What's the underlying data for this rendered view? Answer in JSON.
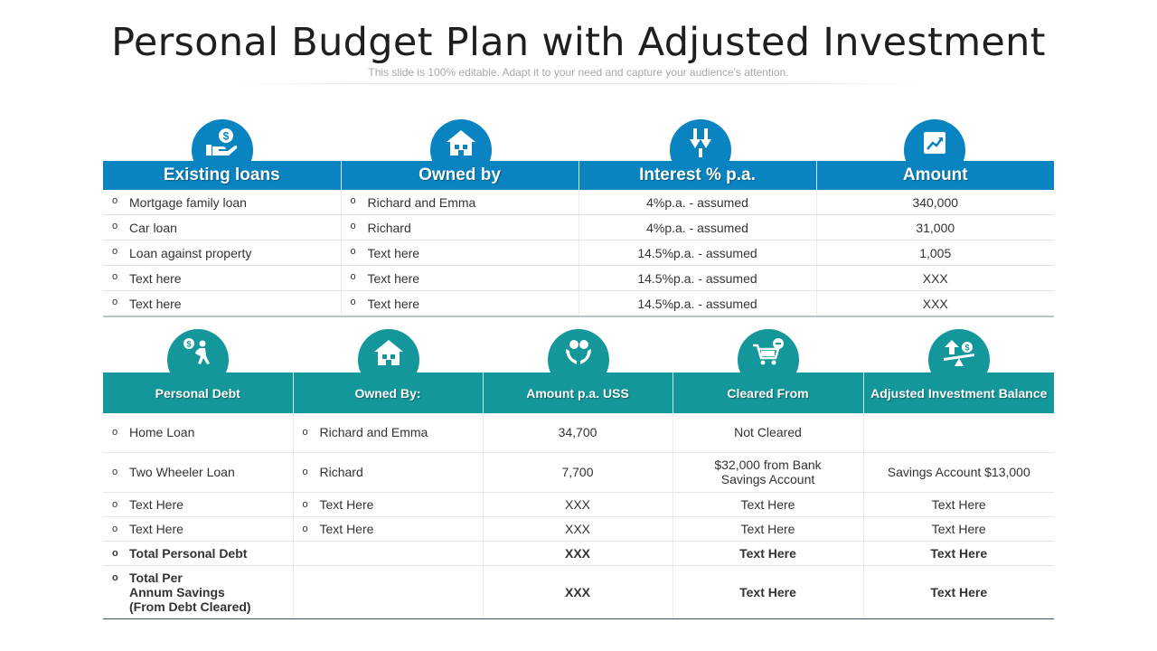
{
  "title": "Personal Budget Plan with Adjusted Investment",
  "subtitle": "This slide is 100% editable. Adapt it to your need and capture your audience's attention.",
  "colors": {
    "table1_header": "#0a84c1",
    "table2_header": "#14979a"
  },
  "table1": {
    "icons": [
      "money-hand-icon",
      "house-icon",
      "arrows-down-icon",
      "growth-chart-icon"
    ],
    "headers": [
      "Existing loans",
      "Owned by",
      "Interest % p.a.",
      "Amount"
    ],
    "rows": [
      [
        "Mortgage family loan",
        "Richard and Emma",
        "4%p.a. - assumed",
        "340,000"
      ],
      [
        "Car loan",
        "Richard",
        "4%p.a. - assumed",
        "31,000"
      ],
      [
        "Loan against property",
        "Text here",
        "14.5%p.a. - assumed",
        "1,005"
      ],
      [
        "Text here",
        "Text here",
        "14.5%p.a. - assumed",
        "XXX"
      ],
      [
        "Text here",
        "Text here",
        "14.5%p.a. - assumed",
        "XXX"
      ]
    ]
  },
  "table2": {
    "icons": [
      "debt-person-icon",
      "house-icon",
      "money-hands-icon",
      "cart-minus-icon",
      "balance-seesaw-icon"
    ],
    "headers": [
      "Personal Debt",
      "Owned By:",
      "Amount  p.a. USS",
      "Cleared From",
      "Adjusted Investment Balance"
    ],
    "rows": [
      [
        "Home Loan",
        "Richard and Emma",
        "34,700",
        "Not Cleared",
        ""
      ],
      [
        "Two Wheeler Loan",
        "Richard",
        "7,700",
        "$32,000 from Bank Savings Account",
        "Savings Account $13,000"
      ],
      [
        "Text Here",
        "Text Here",
        "XXX",
        "Text Here",
        "Text Here"
      ],
      [
        "Text Here",
        "Text Here",
        "XXX",
        "Text Here",
        "Text Here"
      ],
      [
        "Total Personal Debt",
        "",
        "XXX",
        "Text Here",
        "Text Here"
      ],
      [
        "Total Per\nAnnum Savings\n(From Debt Cleared)",
        "",
        "XXX",
        "Text Here",
        "Text Here"
      ]
    ]
  }
}
